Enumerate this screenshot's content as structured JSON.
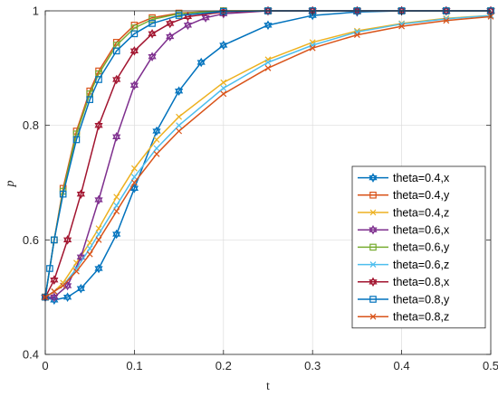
{
  "chart_data": {
    "type": "line",
    "title": "",
    "xlabel": "t",
    "ylabel": "p",
    "xlim": [
      0,
      0.5
    ],
    "ylim": [
      0.4,
      1
    ],
    "xticks": [
      0,
      0.1,
      0.2,
      0.3,
      0.4,
      0.5
    ],
    "xtick_labels": [
      "0",
      "0.1",
      "0.2",
      "0.3",
      "0.4",
      "0.5"
    ],
    "yticks": [
      0.4,
      0.6,
      0.8,
      1
    ],
    "ytick_labels": [
      "0.4",
      "0.6",
      "0.8",
      "1"
    ],
    "grid": true,
    "legend_position": "right",
    "series": [
      {
        "name": "theta=0.4,x",
        "color": "#0072BD",
        "marker": "hexagram",
        "x": [
          0,
          0.01,
          0.025,
          0.04,
          0.06,
          0.08,
          0.1,
          0.125,
          0.15,
          0.175,
          0.2,
          0.25,
          0.3,
          0.35,
          0.4,
          0.45,
          0.5
        ],
        "y": [
          0.5,
          0.495,
          0.5,
          0.515,
          0.55,
          0.61,
          0.69,
          0.79,
          0.86,
          0.91,
          0.94,
          0.975,
          0.992,
          0.998,
          1.0,
          1.0,
          1.0
        ]
      },
      {
        "name": "theta=0.4,y",
        "color": "#D95319",
        "marker": "square",
        "x": [
          0,
          0.01,
          0.02,
          0.035,
          0.05,
          0.06,
          0.08,
          0.1,
          0.12,
          0.15,
          0.2,
          0.25,
          0.3,
          0.35,
          0.4,
          0.45,
          0.5
        ],
        "y": [
          0.5,
          0.6,
          0.69,
          0.79,
          0.86,
          0.895,
          0.945,
          0.975,
          0.988,
          0.996,
          1.0,
          1.0,
          1.0,
          1.0,
          1.0,
          1.0,
          1.0
        ]
      },
      {
        "name": "theta=0.4,z",
        "color": "#EDB120",
        "marker": "x",
        "x": [
          0,
          0.01,
          0.02,
          0.035,
          0.05,
          0.06,
          0.08,
          0.1,
          0.125,
          0.15,
          0.2,
          0.25,
          0.3,
          0.35,
          0.4,
          0.45,
          0.5
        ],
        "y": [
          0.5,
          0.51,
          0.525,
          0.56,
          0.595,
          0.62,
          0.675,
          0.725,
          0.775,
          0.815,
          0.875,
          0.915,
          0.945,
          0.965,
          0.978,
          0.987,
          0.992
        ]
      },
      {
        "name": "theta=0.6,x",
        "color": "#7E2F8E",
        "marker": "hexagram",
        "x": [
          0,
          0.01,
          0.025,
          0.04,
          0.06,
          0.08,
          0.1,
          0.12,
          0.14,
          0.16,
          0.18,
          0.2,
          0.25,
          0.3,
          0.35,
          0.4,
          0.45,
          0.5
        ],
        "y": [
          0.5,
          0.5,
          0.52,
          0.57,
          0.67,
          0.78,
          0.87,
          0.92,
          0.955,
          0.975,
          0.988,
          0.995,
          1.0,
          1.0,
          1.0,
          1.0,
          1.0,
          1.0
        ]
      },
      {
        "name": "theta=0.6,y",
        "color": "#77AC30",
        "marker": "square",
        "x": [
          0,
          0.01,
          0.02,
          0.035,
          0.05,
          0.06,
          0.08,
          0.1,
          0.12,
          0.15,
          0.2,
          0.25,
          0.3,
          0.35,
          0.4,
          0.45,
          0.5
        ],
        "y": [
          0.5,
          0.6,
          0.685,
          0.785,
          0.855,
          0.89,
          0.94,
          0.97,
          0.985,
          0.995,
          1.0,
          1.0,
          1.0,
          1.0,
          1.0,
          1.0,
          1.0
        ]
      },
      {
        "name": "theta=0.6,z",
        "color": "#4DBEEE",
        "marker": "x",
        "x": [
          0,
          0.01,
          0.02,
          0.035,
          0.05,
          0.06,
          0.08,
          0.1,
          0.125,
          0.15,
          0.2,
          0.25,
          0.3,
          0.35,
          0.4,
          0.45,
          0.5
        ],
        "y": [
          0.5,
          0.51,
          0.52,
          0.55,
          0.585,
          0.61,
          0.66,
          0.71,
          0.76,
          0.8,
          0.865,
          0.91,
          0.94,
          0.963,
          0.977,
          0.986,
          0.992
        ]
      },
      {
        "name": "theta=0.8,x",
        "color": "#A2142F",
        "marker": "hexagram",
        "x": [
          0,
          0.01,
          0.025,
          0.04,
          0.06,
          0.08,
          0.1,
          0.12,
          0.14,
          0.16,
          0.2,
          0.25,
          0.3,
          0.35,
          0.4,
          0.45,
          0.5
        ],
        "y": [
          0.5,
          0.53,
          0.6,
          0.68,
          0.8,
          0.88,
          0.93,
          0.96,
          0.978,
          0.99,
          0.998,
          1.0,
          1.0,
          1.0,
          1.0,
          1.0,
          1.0
        ]
      },
      {
        "name": "theta=0.8,y",
        "color": "#0072BD",
        "marker": "square",
        "x": [
          0,
          0.005,
          0.01,
          0.02,
          0.035,
          0.05,
          0.06,
          0.08,
          0.1,
          0.12,
          0.15,
          0.2,
          0.25,
          0.3,
          0.35,
          0.4,
          0.45,
          0.5
        ],
        "y": [
          0.5,
          0.55,
          0.6,
          0.68,
          0.775,
          0.845,
          0.88,
          0.93,
          0.96,
          0.978,
          0.992,
          0.999,
          1.0,
          1.0,
          1.0,
          1.0,
          1.0,
          1.0
        ]
      },
      {
        "name": "theta=0.8,z",
        "color": "#D95319",
        "marker": "x",
        "x": [
          0,
          0.01,
          0.02,
          0.035,
          0.05,
          0.06,
          0.08,
          0.1,
          0.125,
          0.15,
          0.2,
          0.25,
          0.3,
          0.35,
          0.4,
          0.45,
          0.5
        ],
        "y": [
          0.5,
          0.51,
          0.52,
          0.545,
          0.575,
          0.6,
          0.65,
          0.7,
          0.75,
          0.79,
          0.855,
          0.9,
          0.935,
          0.958,
          0.973,
          0.983,
          0.99
        ]
      }
    ]
  }
}
